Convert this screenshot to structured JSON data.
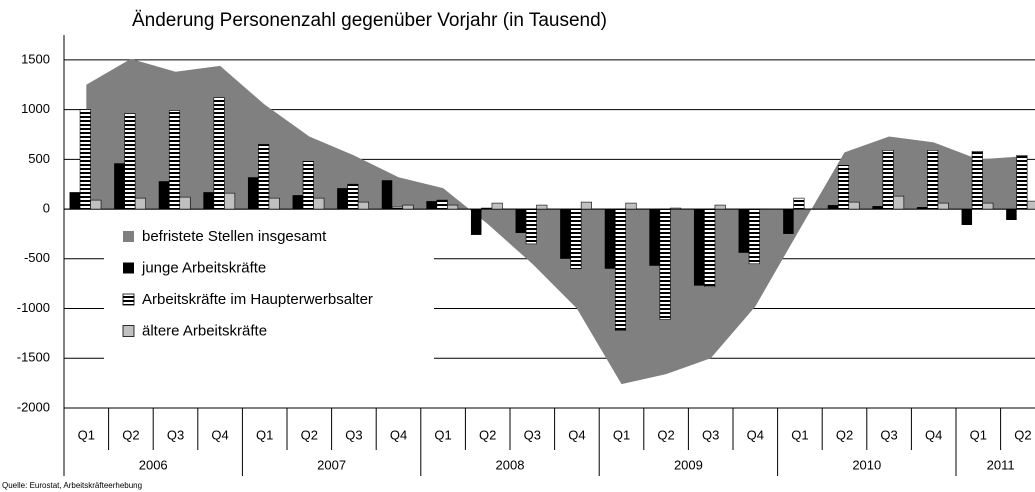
{
  "chart_data": {
    "type": "bar",
    "title": "Änderung Personenzahl gegenüber Vorjahr (in Tausend)",
    "source": "Quelle: Eurostat, Arbeitskräfteerhebung",
    "categories": [
      "Q1",
      "Q2",
      "Q3",
      "Q4",
      "Q1",
      "Q2",
      "Q3",
      "Q4",
      "Q1",
      "Q2",
      "Q3",
      "Q4",
      "Q1",
      "Q2",
      "Q3",
      "Q4",
      "Q1",
      "Q2",
      "Q3",
      "Q4",
      "Q1",
      "Q2"
    ],
    "year_groups": [
      "2006",
      "2007",
      "2008",
      "2009",
      "2010",
      "2011"
    ],
    "ylim": [
      -2000,
      1750
    ],
    "yticks": [
      -2000,
      -1500,
      -1000,
      -500,
      0,
      500,
      1000,
      1500
    ],
    "grid": true,
    "series": [
      {
        "name": "befristete Stellen insgesamt",
        "type": "area",
        "color": "#808080",
        "values": [
          1250,
          1510,
          1380,
          1440,
          1050,
          730,
          540,
          320,
          210,
          -150,
          -550,
          -1000,
          -1760,
          -1660,
          -1500,
          -980,
          -200,
          570,
          730,
          670,
          500,
          530
        ]
      },
      {
        "name": "junge Arbeitskräfte",
        "type": "bar",
        "color": "#000000",
        "values": [
          170,
          460,
          280,
          170,
          320,
          140,
          210,
          290,
          80,
          -260,
          -240,
          -500,
          -600,
          -570,
          -770,
          -440,
          -250,
          40,
          30,
          20,
          -160,
          -110
        ]
      },
      {
        "name": "Arbeitskräfte im Haupterwerbsalter",
        "type": "bar",
        "color": "striped",
        "values": [
          1000,
          960,
          990,
          1120,
          650,
          480,
          250,
          20,
          90,
          10,
          -350,
          -600,
          -1220,
          -1110,
          -780,
          -550,
          110,
          440,
          590,
          590,
          580,
          540
        ]
      },
      {
        "name": "ältere Arbeitskräfte",
        "type": "bar",
        "color": "#c0c0c0",
        "values": [
          90,
          110,
          120,
          160,
          110,
          110,
          70,
          40,
          40,
          60,
          40,
          70,
          60,
          10,
          40,
          0,
          0,
          70,
          130,
          60,
          60,
          80
        ]
      }
    ]
  }
}
